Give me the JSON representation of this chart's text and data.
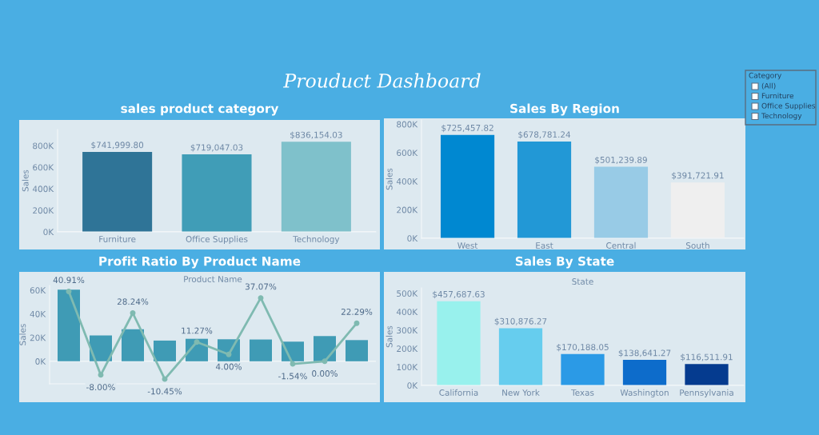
{
  "chart_data": [
    {
      "type": "other",
      "title": "Prouduct Dashboard"
    },
    {
      "type": "bar",
      "title": "sales product category",
      "ylabel": "Sales",
      "categories": [
        "Furniture",
        "Office Supplies",
        "Technology"
      ],
      "values": [
        741999.8,
        719047.03,
        836154.03
      ],
      "colors": [
        "#2f7497",
        "#409db7",
        "#7fc1cb"
      ],
      "value_labels": [
        "$741,999.80",
        "$719,047.03",
        "$836,154.03"
      ],
      "ylim": [
        0,
        950000
      ],
      "yticks": [
        {
          "value": 0,
          "label": "0K"
        },
        {
          "value": 200000,
          "label": "200K"
        },
        {
          "value": 400000,
          "label": "400K"
        },
        {
          "value": 600000,
          "label": "600K"
        },
        {
          "value": 800000,
          "label": "800K"
        }
      ]
    },
    {
      "type": "bar",
      "title": "Sales By Region",
      "ylabel": "Sales",
      "categories": [
        "West",
        "East",
        "Central",
        "South"
      ],
      "values": [
        725457.82,
        678781.24,
        501239.89,
        391721.91
      ],
      "colors": [
        "#0088d1",
        "#2298d6",
        "#98cbe6",
        "#efefef"
      ],
      "value_labels": [
        "$725,457.82",
        "$678,781.24",
        "$501,239.89",
        "$391,721.91"
      ],
      "ylim": [
        0,
        830000
      ],
      "yticks": [
        {
          "value": 0,
          "label": "0K"
        },
        {
          "value": 200000,
          "label": "200K"
        },
        {
          "value": 400000,
          "label": "400K"
        },
        {
          "value": 600000,
          "label": "600K"
        },
        {
          "value": 800000,
          "label": "800K"
        }
      ]
    },
    {
      "type": "bar",
      "title": "Profit Ratio By Product Name",
      "xlabel": "Product Name",
      "ylabel": "Sales",
      "categories": [
        null,
        null,
        null,
        null,
        null,
        null,
        null,
        null,
        null,
        null
      ],
      "marker": "circle",
      "tick_labels": "y",
      "series": [
        {
          "type": "bar",
          "color": "#3f9bb5",
          "values": [
            60500,
            21800,
            27000,
            17500,
            19000,
            18600,
            18400,
            16600,
            21300,
            17900
          ]
        },
        {
          "type": "line",
          "axis": "y2",
          "color": "#7fbab1",
          "values": [
            40.91,
            -8.0,
            28.24,
            -10.45,
            11.27,
            4.0,
            37.07,
            -1.54,
            0.0,
            22.29
          ],
          "value_labels": [
            "40.91%",
            "-8.00%",
            "28.24%",
            "-10.45%",
            "11.27%",
            "4.00%",
            "37.07%",
            "-1.54%",
            "0.00%",
            "22.29%"
          ]
        }
      ],
      "ylim": [
        -19000,
        64000
      ],
      "yticks": [
        {
          "value": 0,
          "label": "0K"
        },
        {
          "value": 20000,
          "label": "20K"
        },
        {
          "value": 40000,
          "label": "40K"
        },
        {
          "value": 60000,
          "label": "60K"
        }
      ],
      "y2lim": [
        -13.2,
        44.4
      ]
    },
    {
      "type": "bar",
      "title": "Sales By State",
      "xlabel": "State",
      "ylabel": "Sales",
      "categories": [
        "California",
        "New York",
        "Texas",
        "Washington",
        "Pennsylvania"
      ],
      "values": [
        457687.63,
        310876.27,
        170188.05,
        138641.27,
        116511.91
      ],
      "colors": [
        "#98f1ed",
        "#66cdee",
        "#2b9ae6",
        "#0d6ccb",
        "#053b8f"
      ],
      "value_labels": [
        "$457,687.63",
        "$310,876.27",
        "$170,188.05",
        "$138,641.27",
        "$116,511.91"
      ],
      "ylim": [
        0,
        530000
      ],
      "yticks": [
        {
          "value": 0,
          "label": "0K"
        },
        {
          "value": 100000,
          "label": "100K"
        },
        {
          "value": 200000,
          "label": "200K"
        },
        {
          "value": 300000,
          "label": "300K"
        },
        {
          "value": 400000,
          "label": "400K"
        },
        {
          "value": 500000,
          "label": "500K"
        }
      ]
    },
    {
      "type": "other",
      "legend_title": "Category",
      "annotations": [
        "(All)",
        "Furniture",
        "Office Supplies",
        "Technology"
      ]
    }
  ]
}
